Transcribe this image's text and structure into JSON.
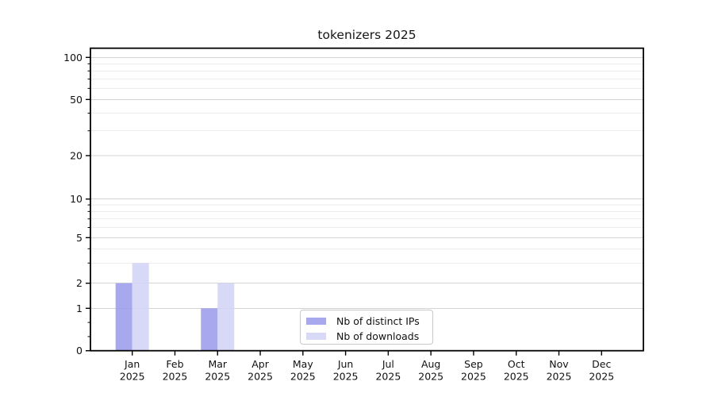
{
  "chart_data": {
    "type": "bar",
    "title": "tokenizers 2025",
    "categories": [
      "Jan 2025",
      "Feb 2025",
      "Mar 2025",
      "Apr 2025",
      "May 2025",
      "Jun 2025",
      "Jul 2025",
      "Aug 2025",
      "Sep 2025",
      "Oct 2025",
      "Nov 2025",
      "Dec 2025"
    ],
    "series": [
      {
        "name": "Nb of distinct IPs",
        "color": "#a8a8ee",
        "values": [
          2,
          0,
          1,
          0,
          0,
          0,
          0,
          0,
          0,
          0,
          0,
          0
        ]
      },
      {
        "name": "Nb of downloads",
        "color": "#d8d8f7",
        "values": [
          3,
          0,
          2,
          0,
          0,
          0,
          0,
          0,
          0,
          0,
          0,
          0
        ]
      }
    ],
    "xlabel": "",
    "ylabel": "",
    "yscale": "symlog",
    "yticks": [
      0,
      1,
      2,
      5,
      10,
      20,
      50,
      100
    ],
    "yticks_minor": [
      3,
      4,
      6,
      7,
      8,
      9,
      30,
      40,
      60,
      70,
      80,
      90
    ],
    "ylim": [
      0,
      115
    ],
    "grid": "horizontal, major and minor, on",
    "legend_position": "lower center",
    "colors": {
      "grid_major": "#d4d4d4",
      "grid_minor": "#ededed",
      "axis": "#000000",
      "text": "#111111"
    }
  }
}
